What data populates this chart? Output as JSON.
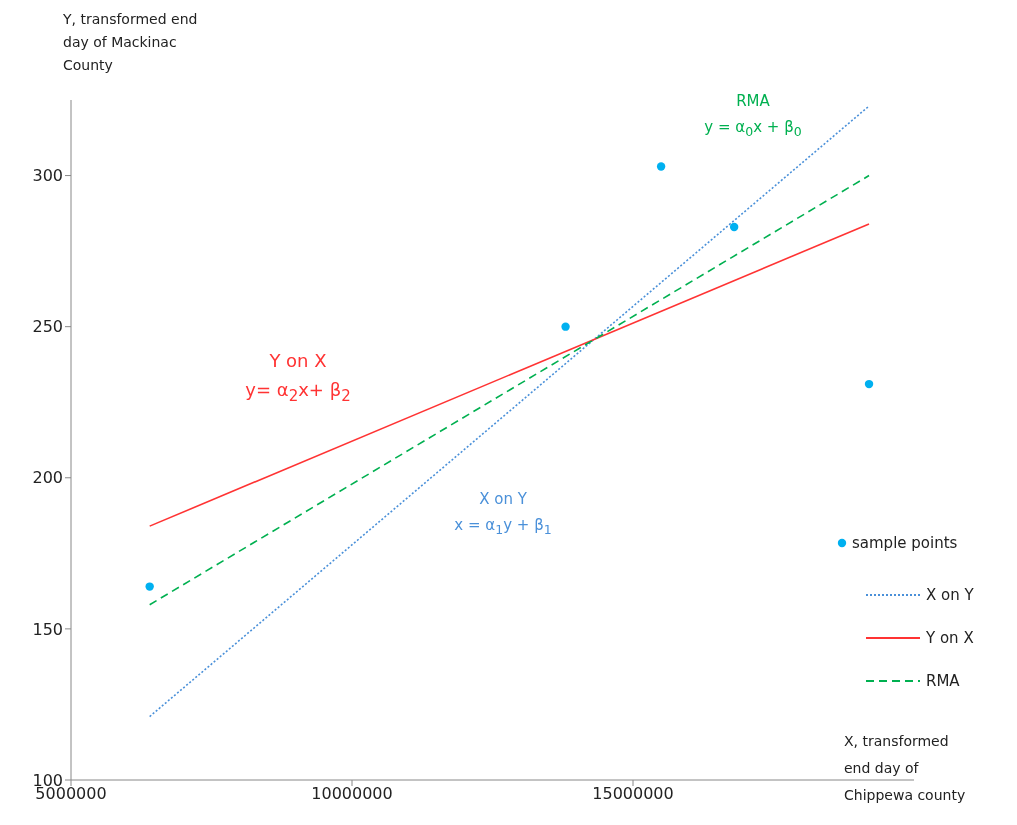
{
  "chart_data": {
    "type": "scatter",
    "xlabel": "X, transformed end day of Chippewa county",
    "ylabel": "Y, transformed end day of Mackinac County",
    "xlim": [
      5000000,
      20000000
    ],
    "xticks": [
      5000000,
      10000000,
      15000000
    ],
    "ylim": [
      100,
      325
    ],
    "yticks": [
      100,
      150,
      200,
      250,
      300
    ],
    "grid": false,
    "legend": "bottom right",
    "annotations": [
      "X on Y\nx = α$_{1}$y + β$_{1}$",
      "Y on X\ny= α$_{2}$x+ β$_{2}$",
      "RMA\ny = α$_{0}$x + β$_{0}$"
    ],
    "series": [
      {
        "name": "sample points",
        "marker": "circle",
        "color": "#00b0f0",
        "x": [
          6400000,
          13800000,
          15500000,
          16800000,
          19200000
        ],
        "values": [
          164,
          250,
          303,
          283,
          231
        ]
      },
      {
        "name": "X on Y",
        "type": "line",
        "marker": "none",
        "line_style": "dotted",
        "color": "#4a90d9",
        "x": [
          6400000,
          19200000
        ],
        "values": [
          121,
          323
        ]
      },
      {
        "name": "Y on X",
        "type": "line",
        "marker": "none",
        "line_style": "solid",
        "color": "#ff3333",
        "x": [
          6400000,
          19200000
        ],
        "values": [
          184,
          284
        ]
      },
      {
        "name": "RMA",
        "type": "line",
        "marker": "none",
        "line_style": "dashed",
        "color": "#00b050",
        "x": [
          6400000,
          19200000
        ],
        "values": [
          158,
          300
        ]
      }
    ]
  }
}
